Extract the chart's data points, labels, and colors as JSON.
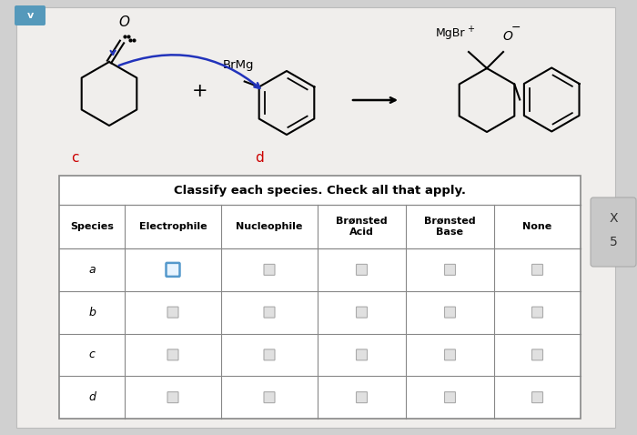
{
  "bg_color": "#d0d0d0",
  "page_color": "#f0eeec",
  "title_text": "Classify each species. Check all that apply.",
  "col_headers": [
    "Species",
    "Electrophile",
    "Nucleophile",
    "Brønsted\nAcid",
    "Brønsted\nBase",
    "None"
  ],
  "row_labels": [
    "a",
    "b",
    "c",
    "d"
  ],
  "label_c_text": "c",
  "label_d_text": "d",
  "label_c_color": "#cc0000",
  "label_d_color": "#cc0000",
  "brMg_text": "BrMg",
  "mgBr_text": "MgBr",
  "oxygen_text": "O",
  "checkbox_checked_face": "#e8f4ff",
  "checkbox_checked_edge": "#5599cc",
  "checkbox_unchecked_face": "#e0e0e0",
  "checkbox_unchecked_edge": "#aaaaaa",
  "side_x_text": "X",
  "side_s_text": "5",
  "tab_color": "#5599bb"
}
